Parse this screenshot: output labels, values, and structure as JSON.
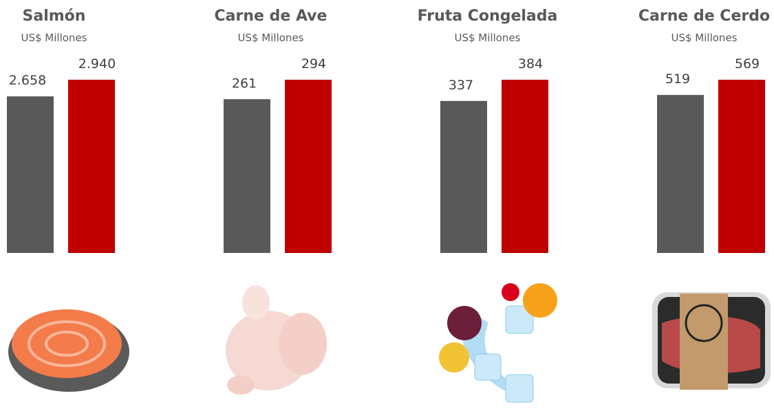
{
  "chart_data": [
    {
      "type": "bar",
      "title": "Salmón",
      "subtitle": "US$ Millones",
      "categories": [
        null,
        null
      ],
      "values": [
        2658,
        2940
      ],
      "value_labels": [
        "2.658",
        "2.940"
      ],
      "colors": [
        "#595959",
        "#c00000"
      ]
    },
    {
      "type": "bar",
      "title": "Carne de Ave",
      "subtitle": "US$ Millones",
      "categories": [
        null,
        null
      ],
      "values": [
        261,
        294
      ],
      "colors": [
        "#595959",
        "#c00000"
      ]
    },
    {
      "type": "bar",
      "title": "Fruta Congelada",
      "subtitle": "US$ Millones",
      "categories": [
        null,
        null
      ],
      "values": [
        337,
        384
      ],
      "colors": [
        "#595959",
        "#c00000"
      ]
    },
    {
      "type": "bar",
      "title": "Carne de Cerdo",
      "subtitle": "US$ Millones",
      "categories": [
        null,
        null
      ],
      "values": [
        519,
        569
      ],
      "colors": [
        "#595959",
        "#c00000"
      ]
    }
  ]
}
